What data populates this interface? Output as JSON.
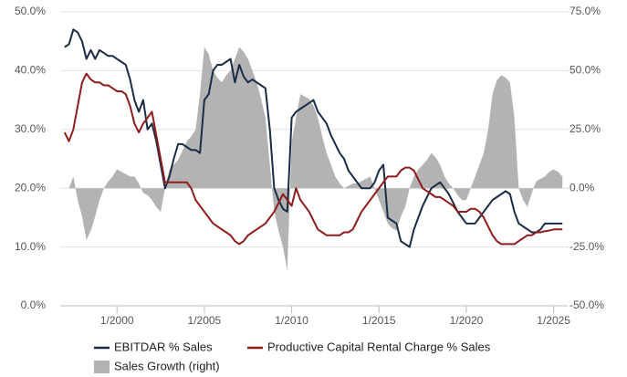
{
  "chart_data": {
    "type": "line",
    "x": [
      "1/1997",
      "4/1997",
      "7/1997",
      "10/1997",
      "1/1998",
      "4/1998",
      "7/1998",
      "10/1998",
      "1/1999",
      "4/1999",
      "7/1999",
      "10/1999",
      "1/2000",
      "4/2000",
      "7/2000",
      "10/2000",
      "1/2001",
      "4/2001",
      "7/2001",
      "10/2001",
      "1/2002",
      "4/2002",
      "7/2002",
      "10/2002",
      "1/2003",
      "4/2003",
      "7/2003",
      "10/2003",
      "1/2004",
      "4/2004",
      "7/2004",
      "10/2004",
      "1/2005",
      "4/2005",
      "7/2005",
      "10/2005",
      "1/2006",
      "4/2006",
      "7/2006",
      "10/2006",
      "1/2007",
      "4/2007",
      "7/2007",
      "10/2007",
      "1/2008",
      "4/2008",
      "7/2008",
      "10/2008",
      "1/2009",
      "4/2009",
      "7/2009",
      "10/2009",
      "1/2010",
      "4/2010",
      "7/2010",
      "10/2010",
      "1/2011",
      "4/2011",
      "7/2011",
      "10/2011",
      "1/2012",
      "4/2012",
      "7/2012",
      "10/2012",
      "1/2013",
      "4/2013",
      "7/2013",
      "10/2013",
      "1/2014",
      "4/2014",
      "7/2014",
      "10/2014",
      "1/2015",
      "4/2015",
      "7/2015",
      "10/2015",
      "1/2016",
      "4/2016",
      "7/2016",
      "10/2016",
      "1/2017",
      "4/2017",
      "7/2017",
      "10/2017",
      "1/2018",
      "4/2018",
      "7/2018",
      "10/2018",
      "1/2019",
      "4/2019",
      "7/2019",
      "10/2019",
      "1/2020",
      "4/2020",
      "7/2020",
      "10/2020",
      "1/2021",
      "4/2021",
      "7/2021",
      "10/2021",
      "1/2022",
      "4/2022",
      "7/2022",
      "10/2022",
      "1/2023",
      "4/2023",
      "7/2023",
      "10/2023",
      "1/2024",
      "4/2024",
      "7/2024",
      "10/2024",
      "1/2025",
      "4/2025",
      "7/2025"
    ],
    "series": [
      {
        "name": "Sales Growth (right)",
        "color": "#b3b3b3",
        "kind": "area",
        "axis": "y2",
        "values": [
          0,
          0,
          5,
          -5,
          -12,
          -22,
          -18,
          -12,
          -5,
          0,
          3,
          5,
          8,
          7,
          6,
          5,
          5,
          2,
          -2,
          -3,
          -5,
          -8,
          -10,
          0,
          8,
          10,
          12,
          16,
          20,
          22,
          25,
          40,
          60,
          57,
          50,
          47,
          45,
          48,
          50,
          55,
          60,
          58,
          55,
          50,
          45,
          38,
          30,
          10,
          -10,
          -18,
          -25,
          -35,
          20,
          30,
          40,
          39,
          38,
          35,
          30,
          22,
          15,
          10,
          5,
          2,
          0,
          1,
          2,
          2,
          3,
          4,
          5,
          0,
          -5,
          -10,
          -15,
          -17,
          -18,
          -12,
          -8,
          0,
          5,
          8,
          10,
          12,
          15,
          13,
          10,
          5,
          2,
          0,
          -3,
          -5,
          -5,
          0,
          5,
          10,
          15,
          25,
          40,
          46,
          48,
          47,
          45,
          30,
          0,
          -5,
          -8,
          -2,
          3,
          4,
          5,
          7,
          8,
          7,
          5
        ]
      },
      {
        "name": "EBITDAR % Sales",
        "color": "#1c2b45",
        "kind": "line",
        "values": [
          44,
          44.5,
          47,
          46.5,
          45,
          42,
          43.5,
          42,
          43.5,
          43,
          42.5,
          42.5,
          42,
          41.5,
          41,
          38.5,
          35,
          33,
          35,
          30,
          31,
          28,
          24,
          20,
          22,
          25,
          27.5,
          27.5,
          27,
          26.5,
          26.5,
          26,
          35,
          36,
          40,
          41,
          41,
          41.5,
          42,
          38,
          41,
          39,
          38,
          38.5,
          38,
          37.5,
          37,
          30,
          20,
          18,
          16.5,
          16,
          32,
          33,
          33.5,
          34,
          34.5,
          35,
          33,
          32,
          31,
          29,
          27.5,
          26,
          25,
          23,
          22,
          21,
          20,
          20,
          20,
          21,
          23,
          24,
          15,
          14.5,
          14,
          11,
          10.5,
          10,
          13,
          15,
          17,
          18.5,
          20,
          20.5,
          21,
          20,
          19,
          17.5,
          16,
          15,
          14,
          14,
          14,
          15,
          16,
          17,
          18,
          18.5,
          19,
          19.5,
          19,
          16,
          14,
          13.5,
          13,
          12.5,
          12.5,
          13,
          14,
          14,
          14,
          14,
          14
        ]
      },
      {
        "name": "Productive Capital Rental Charge % Sales",
        "color": "#8e1c1c",
        "kind": "line",
        "values": [
          29.5,
          28,
          30,
          34,
          38,
          39.5,
          38.5,
          38,
          38,
          37.5,
          37.5,
          37,
          36.5,
          36.5,
          36,
          34,
          31,
          29.5,
          31,
          32,
          33,
          29,
          25,
          21,
          21,
          21,
          21,
          21,
          21,
          20,
          18,
          17,
          16,
          15,
          14,
          13.5,
          13,
          12.5,
          12,
          11,
          10.5,
          11,
          12,
          12.5,
          13,
          13.5,
          14,
          15,
          16,
          17.5,
          19,
          18,
          17,
          20,
          18,
          17,
          16,
          14.5,
          13,
          12.5,
          12,
          12,
          12,
          12,
          12.5,
          12.5,
          13,
          14.5,
          16,
          17,
          18,
          19,
          20,
          21,
          22,
          22,
          22,
          23,
          23.5,
          23.5,
          23,
          21.5,
          20,
          19.5,
          19,
          18.5,
          18.5,
          18,
          17.5,
          17,
          16,
          16,
          16,
          16.5,
          16.5,
          16,
          15,
          13.5,
          12,
          11,
          10.5,
          10.5,
          10.5,
          10.5,
          11,
          11.5,
          12,
          12,
          12.5,
          12.5,
          12.7,
          12.8,
          13,
          13,
          13
        ]
      }
    ],
    "xlim": [
      "10/1996",
      "10/2025"
    ],
    "xticks": [
      "1/2000",
      "1/2005",
      "1/2010",
      "1/2015",
      "1/2020",
      "1/2025"
    ],
    "ylim": [
      0,
      50
    ],
    "yticks": [
      {
        "value": 0,
        "label": "0.0%"
      },
      {
        "value": 10,
        "label": "10.0%"
      },
      {
        "value": 20,
        "label": "20.0%"
      },
      {
        "value": 30,
        "label": "30.0%"
      },
      {
        "value": 40,
        "label": "40.0%"
      },
      {
        "value": 50,
        "label": "50.0%"
      }
    ],
    "y2lim": [
      -50,
      75
    ],
    "y2ticks": [
      {
        "value": -50,
        "label": "-50.0%"
      },
      {
        "value": -25,
        "label": "-25.0%"
      },
      {
        "value": 0,
        "label": "0.0%"
      },
      {
        "value": 25,
        "label": "25.0%"
      },
      {
        "value": 50,
        "label": "50.0%"
      },
      {
        "value": 75,
        "label": "75.0%"
      }
    ],
    "grid": true,
    "legend": "bottom"
  }
}
